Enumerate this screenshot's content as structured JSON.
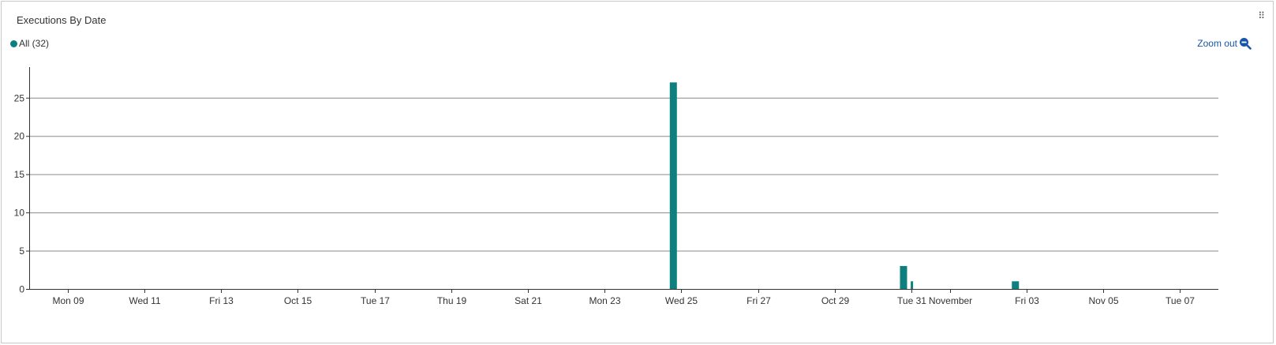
{
  "panel": {
    "title": "Executions By Date",
    "zoom_out_label": "Zoom out"
  },
  "legend": {
    "label": "All (32)"
  },
  "colors": {
    "series": "#0e7f7f",
    "accent": "#1a56a8"
  },
  "icons": {
    "drag": "drag-handle-icon",
    "zoom": "zoom-out-icon"
  },
  "chart_data": {
    "type": "bar",
    "xlabel": "",
    "ylabel": "",
    "ylim": [
      0,
      29
    ],
    "yticks": [
      0,
      5,
      10,
      15,
      20,
      25
    ],
    "grid": true,
    "x_range": [
      "2023-10-08",
      "2023-11-08"
    ],
    "x_tick_labels": [
      {
        "date": "2023-10-09",
        "label": "Mon 09"
      },
      {
        "date": "2023-10-11",
        "label": "Wed 11"
      },
      {
        "date": "2023-10-13",
        "label": "Fri 13"
      },
      {
        "date": "2023-10-15",
        "label": "Oct 15"
      },
      {
        "date": "2023-10-17",
        "label": "Tue 17"
      },
      {
        "date": "2023-10-19",
        "label": "Thu 19"
      },
      {
        "date": "2023-10-21",
        "label": "Sat 21"
      },
      {
        "date": "2023-10-23",
        "label": "Mon 23"
      },
      {
        "date": "2023-10-25",
        "label": "Wed 25"
      },
      {
        "date": "2023-10-27",
        "label": "Fri 27"
      },
      {
        "date": "2023-10-29",
        "label": "Oct 29"
      },
      {
        "date": "2023-10-31",
        "label": "Tue 31"
      },
      {
        "date": "2023-11-01",
        "label": "November"
      },
      {
        "date": "2023-11-03",
        "label": "Fri 03"
      },
      {
        "date": "2023-11-05",
        "label": "Nov 05"
      },
      {
        "date": "2023-11-07",
        "label": "Tue 07"
      }
    ],
    "series": [
      {
        "name": "All (32)",
        "points": [
          {
            "x": "2023-10-24T19:00",
            "y": 27
          },
          {
            "x": "2023-10-30T19:00",
            "y": 3
          },
          {
            "x": "2023-10-31T00:00",
            "y": 1
          },
          {
            "x": "2023-11-02T17:00",
            "y": 1
          }
        ]
      }
    ]
  }
}
